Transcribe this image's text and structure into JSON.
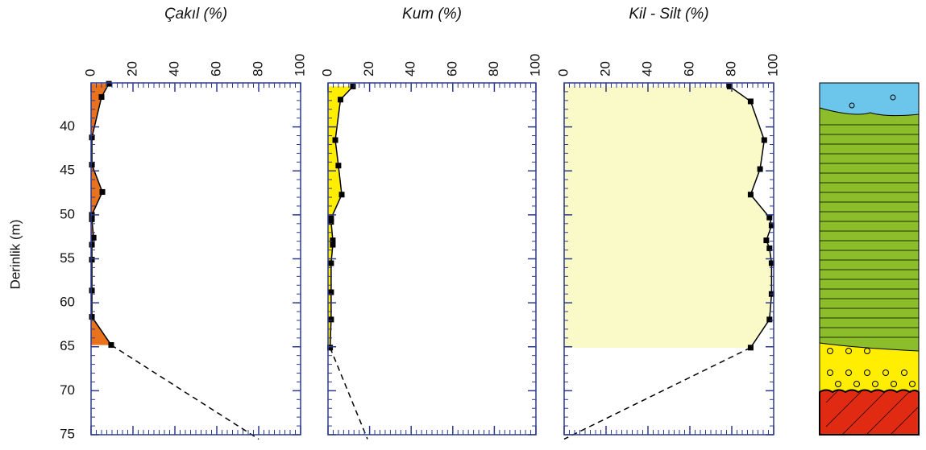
{
  "chart_data": [
    {
      "type": "profile",
      "title": "Çakıl (%)",
      "ylabel": "Derinlik (m)",
      "show_ytick_labels": true,
      "xlim": [
        0,
        100
      ],
      "xticks": [
        0,
        20,
        40,
        60,
        80,
        100
      ],
      "ylim": [
        35,
        75
      ],
      "yticks": [
        40,
        45,
        50,
        55,
        60,
        65,
        70,
        75
      ],
      "fill": "#e8731c",
      "color": "#000000",
      "y": [
        35.1,
        36.6,
        41.2,
        44.3,
        47.4,
        50.0,
        50.5,
        52.6,
        53.4,
        55.1,
        58.6,
        61.6,
        64.8
      ],
      "values": [
        8.5,
        5,
        0.4,
        0.4,
        5.4,
        0.4,
        0.4,
        1.2,
        0.4,
        0.4,
        0.4,
        0.4,
        9.6
      ],
      "dashed": {
        "y": [
          64.8,
          75.5
        ],
        "values": [
          9.6,
          80
        ]
      }
    },
    {
      "type": "profile",
      "title": "Kum (%)",
      "show_ytick_labels": false,
      "xlim": [
        0,
        100
      ],
      "xticks": [
        0,
        20,
        40,
        60,
        80,
        100
      ],
      "ylim": [
        35,
        75
      ],
      "yticks": [
        40,
        45,
        50,
        55,
        60,
        65,
        70,
        75
      ],
      "fill": "#ffee00",
      "color": "#000000",
      "y": [
        35.4,
        36.9,
        41.5,
        44.4,
        47.7,
        50.4,
        50.8,
        52.9,
        53.4,
        55.5,
        58.8,
        61.9,
        65.1
      ],
      "values": [
        12,
        6,
        3.5,
        5,
        6.6,
        1.5,
        1.5,
        2.3,
        2.3,
        1.5,
        1.5,
        1.5,
        1
      ],
      "dashed": {
        "y": [
          65.1,
          75.5
        ],
        "values": [
          1,
          19
        ]
      }
    },
    {
      "type": "profile",
      "title": "Kil - Silt (%)",
      "show_ytick_labels": false,
      "xlim": [
        0,
        100
      ],
      "xticks": [
        0,
        20,
        40,
        60,
        80,
        100
      ],
      "ylim": [
        35,
        75
      ],
      "yticks": [
        40,
        45,
        50,
        55,
        60,
        65,
        70,
        75
      ],
      "fill": "#fafac8",
      "color": "#000000",
      "y": [
        35.4,
        37.1,
        41.5,
        44.8,
        47.7,
        50.3,
        51.2,
        52.9,
        53.8,
        55.5,
        59.0,
        61.9,
        65.1
      ],
      "values": [
        79,
        89,
        95.5,
        93.5,
        89,
        98,
        99,
        96.5,
        98,
        99,
        99,
        98,
        89
      ],
      "dashed": {
        "y": [
          65.1,
          75.5
        ],
        "values": [
          89,
          0
        ]
      }
    }
  ]
}
